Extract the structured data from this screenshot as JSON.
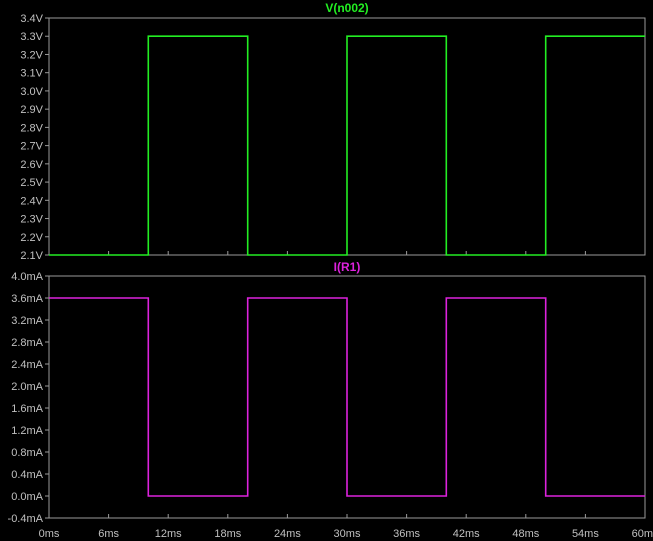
{
  "chart_data": [
    {
      "type": "line",
      "title": "V(n002)",
      "color": "#22ee22",
      "x": [
        0,
        10,
        10,
        20,
        20,
        30,
        30,
        40,
        40,
        50,
        50,
        60
      ],
      "series": [
        {
          "name": "V(n002)",
          "values": [
            2.1,
            2.1,
            3.3,
            3.3,
            2.1,
            2.1,
            3.3,
            3.3,
            2.1,
            2.1,
            3.3,
            3.3
          ]
        }
      ],
      "xlim": [
        0,
        60
      ],
      "ylim": [
        2.1,
        3.4
      ],
      "ytick_values": [
        2.1,
        2.2,
        2.3,
        2.4,
        2.5,
        2.6,
        2.7,
        2.8,
        2.9,
        3.0,
        3.1,
        3.2,
        3.3,
        3.4
      ],
      "ytick_labels": [
        "2.1V",
        "2.2V",
        "2.3V",
        "2.4V",
        "2.5V",
        "2.6V",
        "2.7V",
        "2.8V",
        "2.9V",
        "3.0V",
        "3.1V",
        "3.2V",
        "3.3V",
        "3.4V"
      ],
      "grid": false
    },
    {
      "type": "line",
      "title": "I(R1)",
      "color": "#dd22dd",
      "x": [
        0,
        10,
        10,
        20,
        20,
        30,
        30,
        40,
        40,
        50,
        50,
        60
      ],
      "series": [
        {
          "name": "I(R1)",
          "values": [
            3.6,
            3.6,
            0.0,
            0.0,
            3.6,
            3.6,
            0.0,
            0.0,
            3.6,
            3.6,
            0.0,
            0.0
          ]
        }
      ],
      "xlim": [
        0,
        60
      ],
      "ylim": [
        -0.4,
        4.0
      ],
      "ytick_values": [
        -0.4,
        0.0,
        0.4,
        0.8,
        1.2,
        1.6,
        2.0,
        2.4,
        2.8,
        3.2,
        3.6,
        4.0
      ],
      "ytick_labels": [
        "-0.4mA",
        "0.0mA",
        "0.4mA",
        "0.8mA",
        "1.2mA",
        "1.6mA",
        "2.0mA",
        "2.4mA",
        "2.8mA",
        "3.2mA",
        "3.6mA",
        "4.0mA"
      ],
      "xtick_values": [
        0,
        6,
        12,
        18,
        24,
        30,
        36,
        42,
        48,
        54,
        60
      ],
      "xtick_labels": [
        "0ms",
        "6ms",
        "12ms",
        "18ms",
        "24ms",
        "30ms",
        "36ms",
        "42ms",
        "48ms",
        "54ms",
        "60m"
      ],
      "grid": false
    }
  ]
}
